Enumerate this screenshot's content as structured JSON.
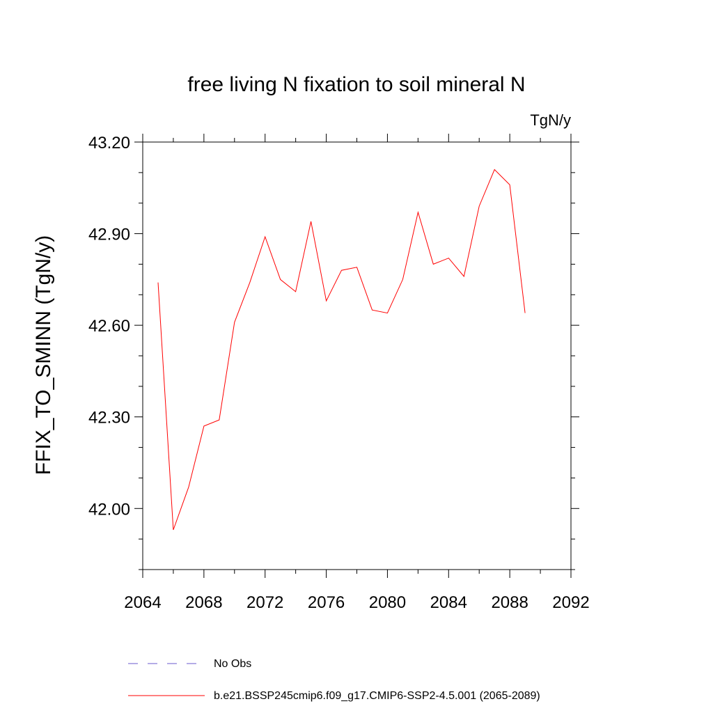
{
  "chart_data": {
    "type": "line",
    "title": "free living N fixation to soil mineral N",
    "units": "TgN/y",
    "xlabel": "",
    "ylabel": "FFIX_TO_SMINN  (TgN/y)",
    "xlim": [
      2064,
      2092
    ],
    "ylim": [
      41.8,
      43.2
    ],
    "x_ticks": [
      2064,
      2068,
      2072,
      2076,
      2080,
      2084,
      2088,
      2092
    ],
    "x_tick_labels": [
      "2064",
      "2068",
      "2072",
      "2076",
      "2080",
      "2084",
      "2088",
      "2092"
    ],
    "y_ticks": [
      42.0,
      42.3,
      42.6,
      42.9,
      43.2
    ],
    "y_tick_labels": [
      "42.00",
      "42.30",
      "42.60",
      "42.90",
      "43.20"
    ],
    "x_minor_step": 2,
    "y_minor_step": 0.1,
    "grid": false,
    "legend_position": "bottom-center",
    "series": [
      {
        "name": "b.e21.BSSP245cmip6.f09_g17.CMIP6-SSP2-4.5.001 (2065-2089)",
        "color": "#ff0000",
        "line_style": "solid",
        "x": [
          2065,
          2066,
          2067,
          2068,
          2069,
          2070,
          2071,
          2072,
          2073,
          2074,
          2075,
          2076,
          2077,
          2078,
          2079,
          2080,
          2081,
          2082,
          2083,
          2084,
          2085,
          2086,
          2087,
          2088,
          2089
        ],
        "values": [
          42.74,
          41.93,
          42.07,
          42.27,
          42.29,
          42.61,
          42.74,
          42.89,
          42.75,
          42.71,
          42.94,
          42.68,
          42.78,
          42.79,
          42.65,
          42.64,
          42.75,
          42.97,
          42.8,
          42.82,
          42.76,
          42.99,
          43.11,
          43.06,
          42.64
        ]
      }
    ],
    "legend_entries": [
      {
        "label": "No Obs",
        "color": "#6a5acd",
        "line_style": "dashed"
      },
      {
        "label": "b.e21.BSSP245cmip6.f09_g17.CMIP6-SSP2-4.5.001 (2065-2089)",
        "color": "#ff0000",
        "line_style": "solid"
      }
    ]
  }
}
